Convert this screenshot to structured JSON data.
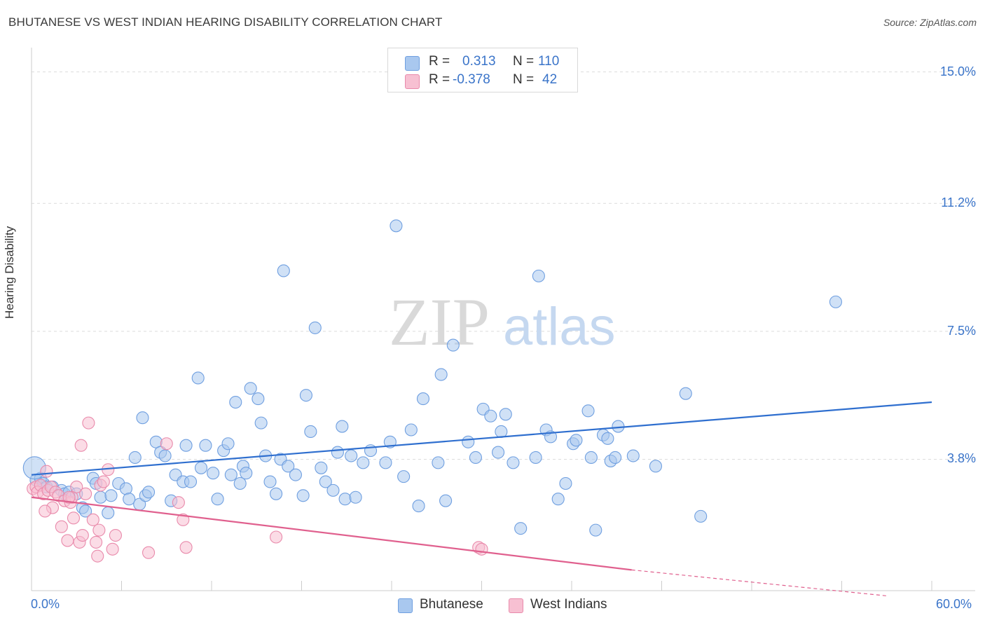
{
  "header": {
    "title": "BHUTANESE VS WEST INDIAN HEARING DISABILITY CORRELATION CHART",
    "source": "Source: ZipAtlas.com"
  },
  "legend": {
    "r_label": "R =",
    "n_label": "N =",
    "rows": [
      {
        "name": "Bhutanese",
        "r": "0.313",
        "n": "110",
        "color": "#a9c8ef",
        "border": "#6f9fe0"
      },
      {
        "name": "West Indians",
        "r": "-0.378",
        "n": "42",
        "color": "#f7c0d2",
        "border": "#e98aab"
      }
    ]
  },
  "watermark": {
    "zip": "ZIP",
    "atlas": "atlas"
  },
  "chart_data": {
    "type": "scatter",
    "title": "BHUTANESE VS WEST INDIAN HEARING DISABILITY CORRELATION CHART",
    "xlabel": "",
    "ylabel": "Hearing Disability",
    "xlim": [
      0,
      60
    ],
    "ylim": [
      0,
      15.5
    ],
    "x_tick_labels": [
      "0.0%",
      "60.0%"
    ],
    "y_ticks": [
      3.8,
      7.5,
      11.2,
      15.0
    ],
    "y_tick_labels": [
      "3.8%",
      "7.5%",
      "11.2%",
      "15.0%"
    ],
    "grid": true,
    "series": [
      {
        "name": "Bhutanese",
        "color": "#6f9fe0",
        "fill": "#a9c8ef",
        "trend": {
          "x": [
            0,
            60
          ],
          "y": [
            3.35,
            5.45
          ],
          "color": "#2f6fcf"
        },
        "points": [
          [
            0.3,
            3.2
          ],
          [
            0.6,
            3.25
          ],
          [
            0.8,
            3.1
          ],
          [
            1.0,
            3.0
          ],
          [
            1.4,
            3.0
          ],
          [
            2.0,
            2.9
          ],
          [
            2.2,
            2.8
          ],
          [
            2.5,
            2.85
          ],
          [
            3.0,
            2.8
          ],
          [
            3.4,
            2.4
          ],
          [
            3.6,
            2.3
          ],
          [
            4.1,
            3.25
          ],
          [
            4.3,
            3.1
          ],
          [
            4.6,
            2.7
          ],
          [
            5.1,
            2.25
          ],
          [
            5.3,
            2.75
          ],
          [
            5.8,
            3.1
          ],
          [
            6.3,
            2.95
          ],
          [
            6.5,
            2.65
          ],
          [
            6.9,
            3.85
          ],
          [
            7.2,
            2.5
          ],
          [
            7.4,
            5.0
          ],
          [
            7.6,
            2.75
          ],
          [
            7.8,
            2.85
          ],
          [
            8.3,
            4.3
          ],
          [
            8.6,
            4.0
          ],
          [
            8.9,
            3.9
          ],
          [
            9.3,
            2.6
          ],
          [
            9.6,
            3.35
          ],
          [
            10.1,
            3.15
          ],
          [
            10.3,
            4.2
          ],
          [
            10.6,
            3.15
          ],
          [
            11.1,
            6.15
          ],
          [
            11.3,
            3.55
          ],
          [
            11.6,
            4.2
          ],
          [
            12.1,
            3.4
          ],
          [
            12.4,
            2.65
          ],
          [
            12.8,
            4.05
          ],
          [
            13.1,
            4.25
          ],
          [
            13.3,
            3.35
          ],
          [
            13.6,
            5.45
          ],
          [
            13.9,
            3.1
          ],
          [
            14.1,
            3.6
          ],
          [
            14.3,
            3.4
          ],
          [
            14.6,
            5.85
          ],
          [
            15.1,
            5.55
          ],
          [
            15.3,
            4.85
          ],
          [
            15.6,
            3.9
          ],
          [
            15.9,
            3.15
          ],
          [
            16.3,
            2.8
          ],
          [
            16.6,
            3.8
          ],
          [
            16.8,
            9.25
          ],
          [
            17.1,
            3.6
          ],
          [
            17.6,
            3.35
          ],
          [
            18.1,
            2.75
          ],
          [
            18.3,
            5.65
          ],
          [
            18.6,
            4.6
          ],
          [
            18.9,
            7.6
          ],
          [
            19.3,
            3.55
          ],
          [
            19.6,
            3.15
          ],
          [
            20.1,
            2.9
          ],
          [
            20.4,
            4.0
          ],
          [
            20.7,
            4.75
          ],
          [
            20.9,
            2.65
          ],
          [
            21.3,
            3.9
          ],
          [
            21.6,
            2.7
          ],
          [
            22.1,
            3.7
          ],
          [
            22.6,
            4.05
          ],
          [
            23.6,
            3.7
          ],
          [
            23.9,
            4.3
          ],
          [
            24.3,
            10.55
          ],
          [
            24.8,
            3.3
          ],
          [
            25.3,
            4.65
          ],
          [
            25.8,
            2.45
          ],
          [
            26.1,
            5.55
          ],
          [
            27.1,
            3.7
          ],
          [
            27.3,
            6.25
          ],
          [
            27.6,
            2.6
          ],
          [
            28.1,
            7.1
          ],
          [
            29.1,
            4.3
          ],
          [
            29.6,
            3.85
          ],
          [
            30.1,
            5.25
          ],
          [
            30.6,
            5.05
          ],
          [
            31.1,
            4.0
          ],
          [
            31.3,
            4.6
          ],
          [
            31.6,
            5.1
          ],
          [
            32.1,
            3.7
          ],
          [
            32.6,
            1.8
          ],
          [
            33.6,
            3.85
          ],
          [
            33.8,
            9.1
          ],
          [
            34.3,
            4.65
          ],
          [
            34.6,
            4.45
          ],
          [
            35.1,
            2.65
          ],
          [
            35.6,
            3.1
          ],
          [
            36.1,
            4.25
          ],
          [
            36.3,
            4.35
          ],
          [
            37.1,
            5.2
          ],
          [
            37.3,
            3.85
          ],
          [
            37.6,
            1.75
          ],
          [
            38.1,
            4.5
          ],
          [
            38.4,
            4.4
          ],
          [
            38.6,
            3.75
          ],
          [
            38.9,
            3.85
          ],
          [
            39.1,
            4.75
          ],
          [
            40.1,
            3.9
          ],
          [
            41.6,
            3.6
          ],
          [
            43.6,
            5.7
          ],
          [
            44.6,
            2.15
          ],
          [
            53.6,
            8.35
          ],
          [
            0.2,
            3.55
          ]
        ]
      },
      {
        "name": "West Indians",
        "color": "#e98aab",
        "fill": "#f7c0d2",
        "trend": {
          "x": [
            0,
            40
          ],
          "y": [
            2.7,
            0.6
          ],
          "color": "#e0608e",
          "dashed_to_x": 57,
          "dashed_to_y": -0.15
        },
        "points": [
          [
            0.1,
            2.95
          ],
          [
            0.3,
            3.0
          ],
          [
            0.4,
            2.85
          ],
          [
            0.6,
            3.05
          ],
          [
            0.8,
            2.8
          ],
          [
            1.0,
            3.45
          ],
          [
            1.1,
            2.9
          ],
          [
            1.3,
            3.0
          ],
          [
            1.6,
            2.85
          ],
          [
            1.8,
            2.75
          ],
          [
            2.0,
            1.85
          ],
          [
            2.2,
            2.6
          ],
          [
            2.4,
            1.45
          ],
          [
            2.6,
            2.55
          ],
          [
            2.7,
            2.7
          ],
          [
            2.8,
            2.1
          ],
          [
            3.0,
            3.0
          ],
          [
            3.2,
            1.4
          ],
          [
            3.4,
            1.6
          ],
          [
            3.6,
            2.8
          ],
          [
            3.8,
            4.85
          ],
          [
            4.1,
            2.05
          ],
          [
            4.3,
            1.4
          ],
          [
            4.5,
            1.75
          ],
          [
            4.6,
            3.05
          ],
          [
            4.8,
            3.15
          ],
          [
            5.1,
            3.5
          ],
          [
            5.4,
            1.2
          ],
          [
            5.6,
            1.6
          ],
          [
            7.8,
            1.1
          ],
          [
            9.0,
            4.25
          ],
          [
            9.8,
            2.55
          ],
          [
            10.1,
            2.05
          ],
          [
            10.3,
            1.25
          ],
          [
            16.3,
            1.55
          ],
          [
            29.8,
            1.25
          ],
          [
            30.0,
            1.2
          ],
          [
            1.4,
            2.4
          ],
          [
            0.9,
            2.3
          ],
          [
            3.3,
            4.2
          ],
          [
            4.4,
            1.0
          ],
          [
            2.5,
            2.7
          ]
        ]
      }
    ]
  }
}
